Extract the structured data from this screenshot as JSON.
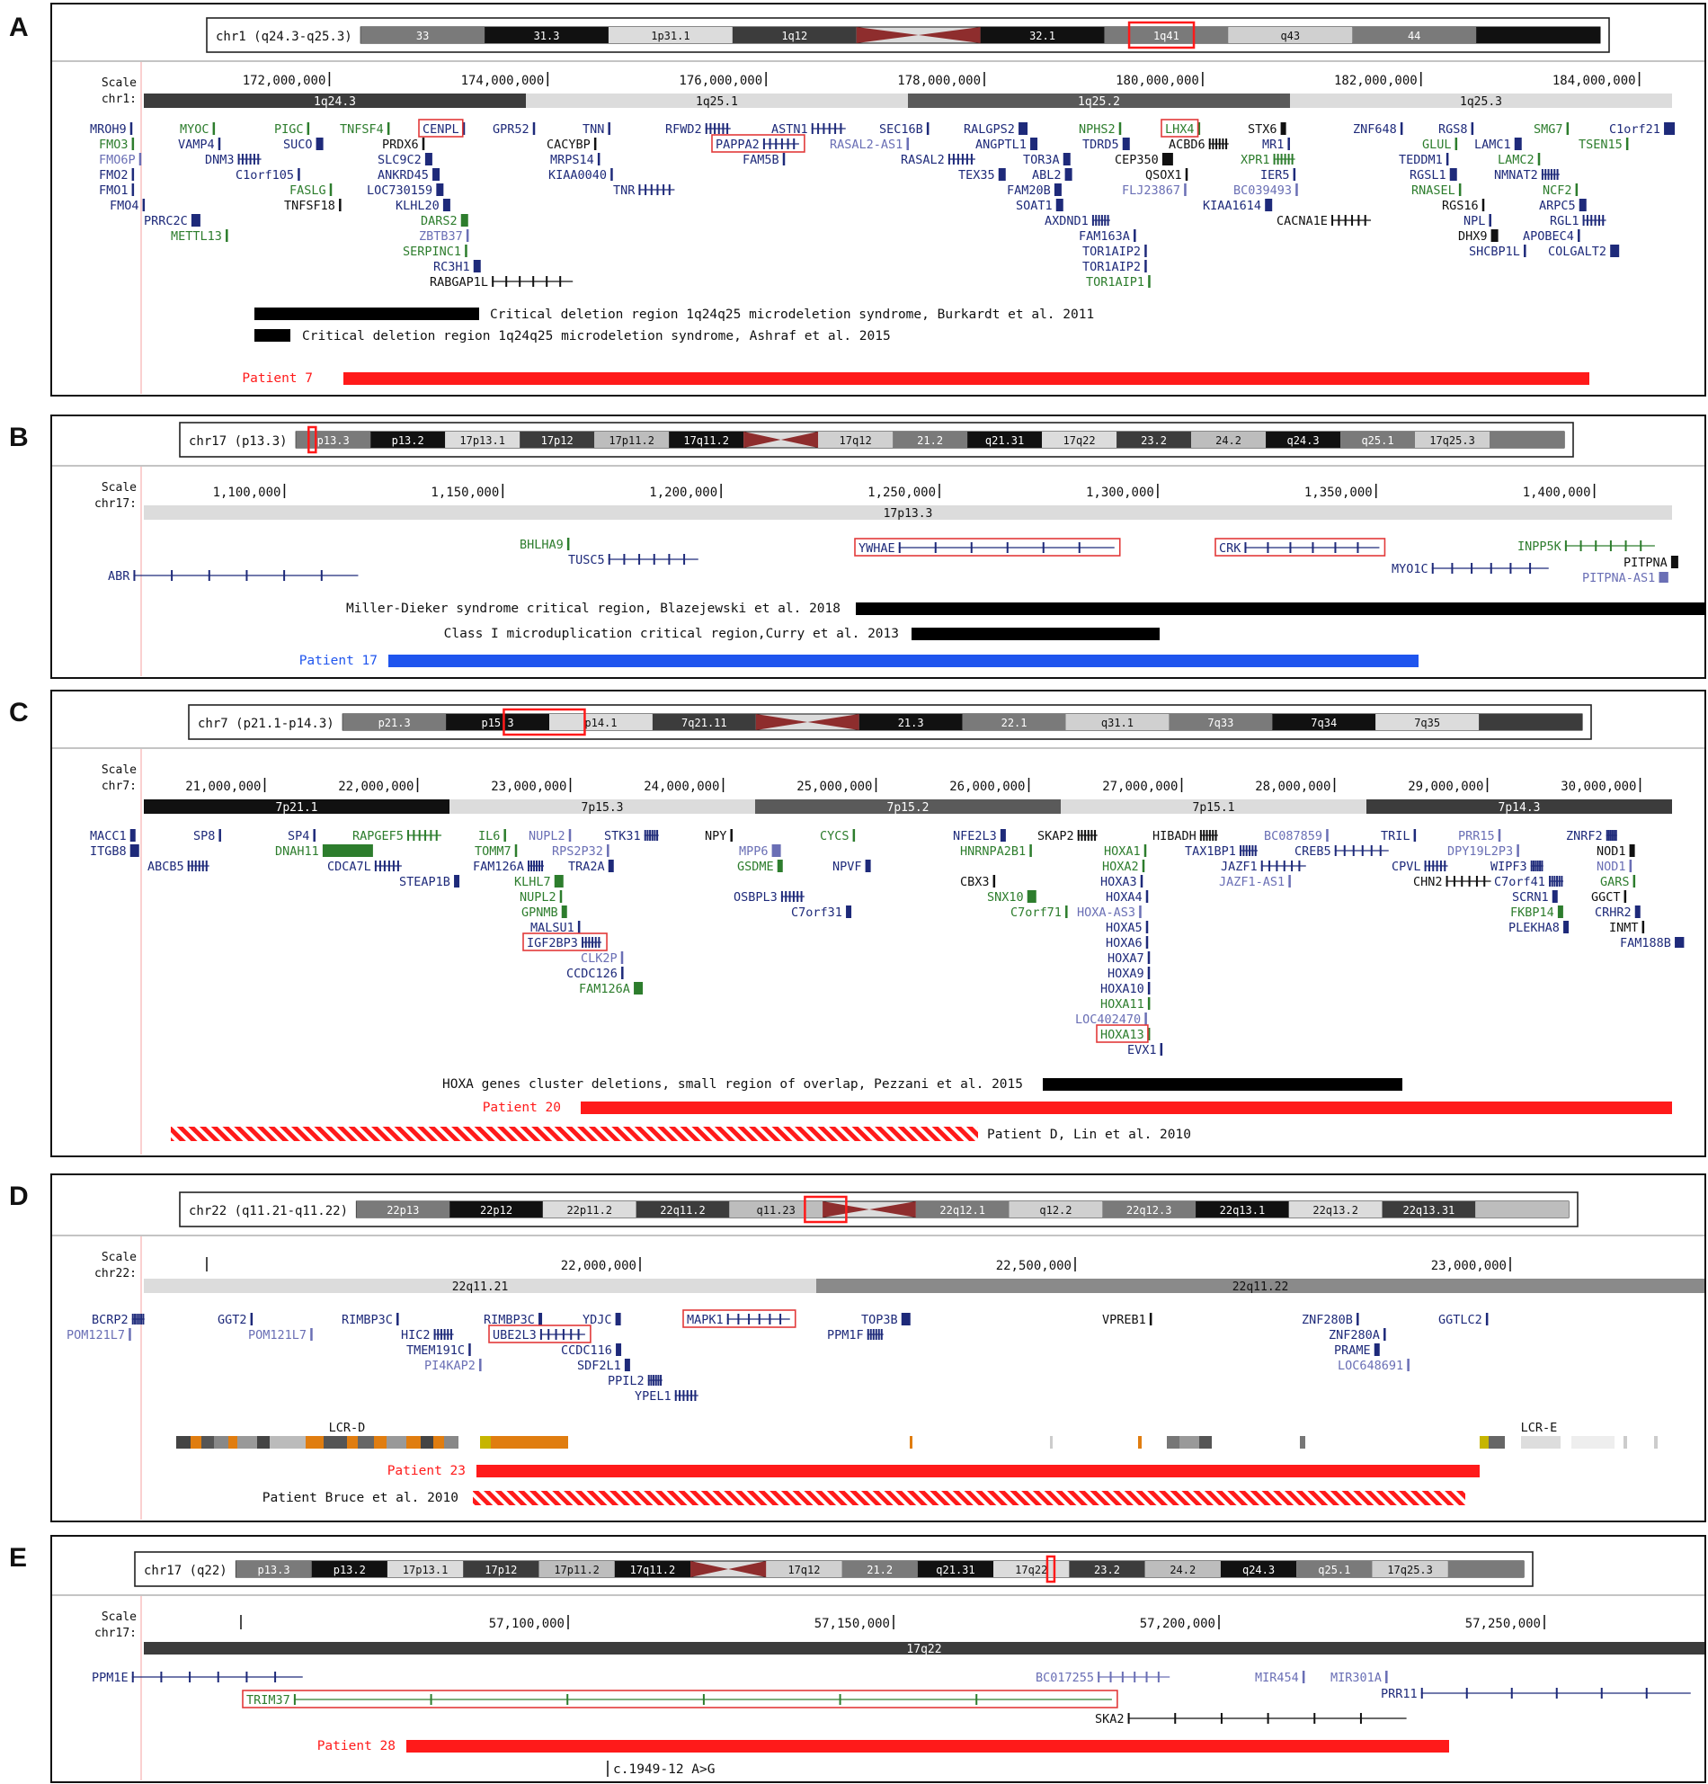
{
  "colors": {
    "navy": "#1e2a7a",
    "green": "#2d7d2d",
    "purple_light": "#6a6fb5",
    "red": "#ff1a1a",
    "blue": "#1f55ee",
    "black": "#111111",
    "band_dark": "#3c3c3c",
    "band_mid": "#7a7a7a",
    "band_light": "#dcdcdc",
    "centromere": "#8e2d2d"
  },
  "panels": [
    {
      "letter": "A",
      "ideogram_label": "chr1 (q24.3-q25.3)",
      "ideo_bands": [
        "33",
        "31.3",
        "1p31.1",
        "1q12",
        "32.1",
        "1q41",
        "q43",
        "44"
      ],
      "scale_label": "Scale",
      "chrom_label": "chr1:",
      "coords": [
        "172,000,000",
        "174,000,000",
        "176,000,000",
        "178,000,000",
        "180,000,000",
        "182,000,000",
        "184,000,000"
      ],
      "cyto_bands": [
        "1q24.3",
        "1q25.1",
        "1q25.2",
        "1q25.3"
      ],
      "genes": [
        "MROH9",
        "FMO3",
        "FMO6P",
        "FMO2",
        "FMO1",
        "FMO4",
        "PRRC2C",
        "METTL13",
        "MYOC",
        "VAMP4",
        "DNM3",
        "C1orf105",
        "PIGC",
        "SUCO",
        "FASLG",
        "TNFSF4",
        "PRDX6",
        "SLC9C2",
        "ANKRD45",
        "LOC730159",
        "TNFSF18",
        "KLHL20",
        "DARS2",
        "ZBTB37",
        "SERPINC1",
        "RC3H1",
        "RABGAP1L",
        "CENPL",
        "GPR52",
        "TNN",
        "CACYBP",
        "MRPS14",
        "KIAA0040",
        "TNR",
        "RFWD2",
        "PAPPA2",
        "ASTN1",
        "FAM5B",
        "SEC16B",
        "RASAL2-AS1",
        "RASAL2",
        "RALGPS2",
        "ANGPTL1",
        "TOR3A",
        "TEX35",
        "ABL2",
        "FAM20B",
        "SOAT1",
        "AXDND1",
        "NPHS2",
        "TDRD5",
        "FAM163A",
        "TOR1AIP2",
        "TOR1AIP2",
        "TOR1AIP1",
        "LHX4",
        "ACBD6",
        "CEP350",
        "QSOX1",
        "FLJ23867",
        "STX6",
        "MR1",
        "XPR1",
        "IER5",
        "BC039493",
        "KIAA1614",
        "CACNA1E",
        "ZNF648",
        "GLUL",
        "TEDDM1",
        "RGSL1",
        "RNASEL",
        "RGS16",
        "RGS8",
        "LAMC1",
        "LAMC2",
        "NMNAT2",
        "NPL",
        "DHX9",
        "SHCBP1L",
        "SMG7",
        "NCF2",
        "ARPC5",
        "RGL1",
        "APOBEC4",
        "COLGALT2",
        "C1orf21",
        "TSEN15"
      ],
      "regions": [
        "Critical deletion region 1q24q25 microdeletion syndrome, Burkardt et al. 2011",
        "Critical deletion region 1q24q25 microdeletion syndrome, Ashraf et al. 2015"
      ],
      "patient": "Patient 7"
    },
    {
      "letter": "B",
      "ideogram_label": "chr17 (p13.3)",
      "ideo_bands": [
        "p13.3",
        "p13.2",
        "17p13.1",
        "17p12",
        "17p11.2",
        "17q11.2",
        "17q12",
        "21.2",
        "q21.31",
        "17q22",
        "23.2",
        "24.2",
        "q24.3",
        "q25.1",
        "17q25.3"
      ],
      "scale_label": "Scale",
      "chrom_label": "chr17:",
      "coords": [
        "1,100,000",
        "1,150,000",
        "1,200,000",
        "1,250,000",
        "1,300,000",
        "1,350,000",
        "1,400,000"
      ],
      "cyto_bands": [
        "17p13.3"
      ],
      "genes": [
        "ABR",
        "BHLHA9",
        "TUSC5",
        "YWHAE",
        "CRK",
        "MYO1C",
        "INPP5K",
        "PITPNA",
        "PITPNA-AS1"
      ],
      "regions": [
        "Miller-Dieker syndrome critical region, Blazejewski et al. 2018",
        "Class I microduplication critical region,Curry et al. 2013"
      ],
      "patient": "Patient 17"
    },
    {
      "letter": "C",
      "ideogram_label": "chr7 (p21.1-p14.3)",
      "ideo_bands": [
        "p21.3",
        "p15.3",
        "p14.1",
        "7q21.11",
        "21.3",
        "22.1",
        "q31.1",
        "7q33",
        "7q34",
        "7q35"
      ],
      "scale_label": "Scale",
      "chrom_label": "chr7:",
      "coords": [
        "21,000,000",
        "22,000,000",
        "23,000,000",
        "24,000,000",
        "25,000,000",
        "26,000,000",
        "27,000,000",
        "28,000,000",
        "29,000,000",
        "30,000,000"
      ],
      "cyto_bands": [
        "7p21.1",
        "7p15.3",
        "7p15.2",
        "7p15.1",
        "7p14.3"
      ],
      "genes": [
        "MACC1",
        "ITGB8",
        "SP8",
        "ABCB5",
        "SP4",
        "DNAH11",
        "RAPGEF5",
        "CDCA7L",
        "STEAP1B",
        "IL6",
        "TOMM7",
        "FAM126A",
        "KLHL7",
        "NUPL2",
        "GPNMB",
        "MALSU1",
        "IGF2BP3",
        "CLK2P",
        "CCDC126",
        "FAM126A",
        "NUPL2",
        "RPS2P32",
        "STK31",
        "TRA2A",
        "NPY",
        "MPP6",
        "GSDME",
        "OSBPL3",
        "CYCS",
        "NPVF",
        "C7orf31",
        "NFE2L3",
        "HNRNPA2B1",
        "CBX3",
        "SNX10",
        "C7orf71",
        "SKAP2",
        "HOXA1",
        "HOXA2",
        "HOXA3",
        "HOXA4",
        "HOXA-AS3",
        "HOXA5",
        "HOXA6",
        "HOXA7",
        "HOXA9",
        "HOXA10",
        "HOXA11",
        "LOC402470",
        "HOXA13",
        "EVX1",
        "HIBADH",
        "TAX1BP1",
        "JAZF1",
        "JAZF1-AS1",
        "BC087859",
        "CREB5",
        "TRIL",
        "CPVL",
        "CHN2",
        "PRR15",
        "DPY19L2P3",
        "WIPF3",
        "C7orf41",
        "SCRN1",
        "FKBP14",
        "PLEKHA8",
        "ZNRF2",
        "NOD1",
        "NOD1",
        "GARS",
        "GGCT",
        "CRHR2",
        "INMT",
        "FAM188B"
      ],
      "regions": [
        "HOXA genes cluster deletions, small region of overlap, Pezzani et al. 2015"
      ],
      "patient": "Patient 20",
      "patient_lit": "Patient D, Lin et al. 2010"
    },
    {
      "letter": "D",
      "ideogram_label": "chr22 (q11.21-q11.22)",
      "ideo_bands": [
        "22p13",
        "22p12",
        "22p11.2",
        "22q11.2",
        "q11.23",
        "22q12.1",
        "q12.2",
        "22q12.3",
        "22q13.1",
        "22q13.2",
        "22q13.31"
      ],
      "scale_label": "Scale",
      "chrom_label": "chr22:",
      "coords": [
        "22,000,000",
        "22,500,000",
        "23,000,000"
      ],
      "cyto_bands": [
        "22q11.21",
        "22q11.22"
      ],
      "genes": [
        "BCRP2",
        "POM121L7",
        "GGT2",
        "POM121L7",
        "RIMBP3C",
        "HIC2",
        "TMEM191C",
        "PI4KAP2",
        "RIMBP3C",
        "UBE2L3",
        "YDJC",
        "CCDC116",
        "SDF2L1",
        "PPIL2",
        "YPEL1",
        "MAPK1",
        "TOP3B",
        "PPM1F",
        "VPREB1",
        "ZNF280B",
        "ZNF280A",
        "PRAME",
        "LOC648691",
        "GGTLC2"
      ],
      "lcr": [
        "LCR-D",
        "LCR-E"
      ],
      "patient": "Patient 23",
      "patient_lit": "Patient Bruce et al. 2010"
    },
    {
      "letter": "E",
      "ideogram_label": "chr17 (q22)",
      "ideo_bands": [
        "p13.3",
        "p13.2",
        "17p13.1",
        "17p12",
        "17p11.2",
        "17q11.2",
        "17q12",
        "21.2",
        "q21.31",
        "17q22",
        "23.2",
        "24.2",
        "q24.3",
        "q25.1",
        "17q25.3"
      ],
      "scale_label": "Scale",
      "chrom_label": "chr17:",
      "coords": [
        "57,100,000",
        "57,150,000",
        "57,200,000",
        "57,250,000"
      ],
      "cyto_bands": [
        "17q22"
      ],
      "genes": [
        "PPM1E",
        "TRIM37",
        "BC017255",
        "MIR454",
        "MIR301A",
        "PRR11",
        "SKA2"
      ],
      "patient": "Patient 28",
      "variant": "c.1949-12 A>G"
    }
  ]
}
